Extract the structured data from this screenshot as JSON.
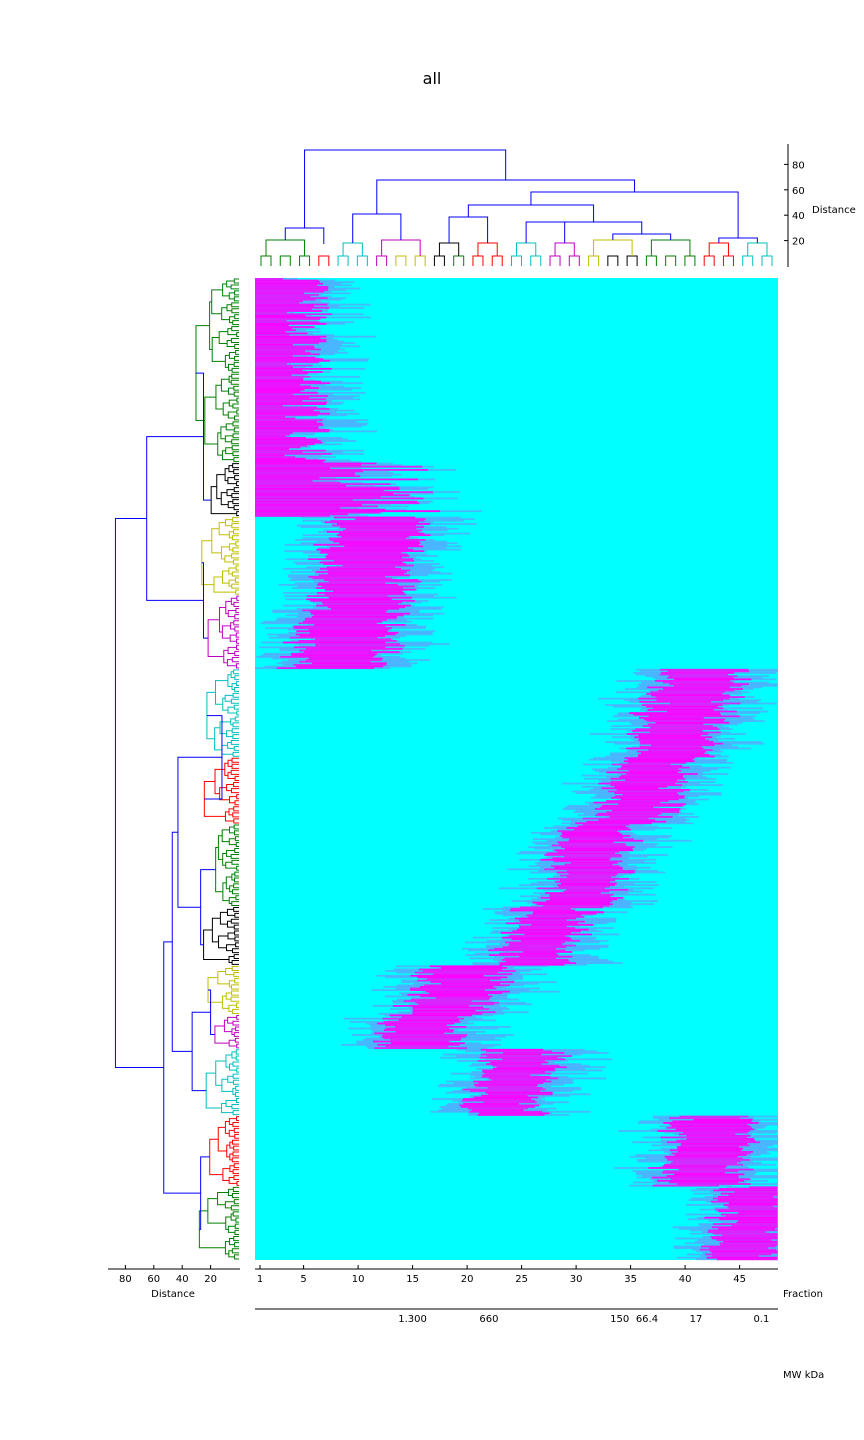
{
  "chart_data": {
    "type": "heatmap",
    "title": "all",
    "colormap": {
      "low": "#00ffff",
      "high": "#ff00ff",
      "mid": "#8080ff"
    },
    "x_axis": {
      "label": "Fraction",
      "range": [
        1,
        48
      ],
      "ticks": [
        1,
        5,
        10,
        15,
        20,
        25,
        30,
        35,
        40,
        45
      ]
    },
    "mw_axis": {
      "label": "MW kDa",
      "markers": [
        {
          "fraction": 15,
          "label": "1.300"
        },
        {
          "fraction": 22,
          "label": "660"
        },
        {
          "fraction": 34,
          "label": "150"
        },
        {
          "fraction": 36.5,
          "label": "66.4"
        },
        {
          "fraction": 41,
          "label": "17"
        },
        {
          "fraction": 47,
          "label": "0.1"
        }
      ]
    },
    "top_dendrogram": {
      "label": "Distance",
      "ticks": [
        20,
        40,
        60,
        80
      ],
      "range": [
        0,
        95
      ],
      "cluster_colors": [
        "#008000",
        "#008000",
        "#008000",
        "#ff0000",
        "#00bfbf",
        "#00bfbf",
        "#bf00bf",
        "#bfbf00",
        "#bfbf00",
        "#000000",
        "#008000",
        "#ff0000",
        "#ff0000",
        "#00bfbf",
        "#00bfbf",
        "#bf00bf",
        "#bf00bf",
        "#bfbf00",
        "#000000",
        "#000000",
        "#008000",
        "#008000",
        "#008000",
        "#ff0000",
        "#ff0000",
        "#00bfbf",
        "#00bfbf"
      ]
    },
    "left_dendrogram": {
      "label": "Distance",
      "ticks": [
        80,
        60,
        40,
        20
      ],
      "range": [
        0,
        92
      ],
      "link_color": "#0000ff"
    },
    "row_clusters": [
      {
        "color": "#008000",
        "row_start": 0.0,
        "row_end": 0.188,
        "profile": "early",
        "peak_fraction": 4,
        "width": 5
      },
      {
        "color": "#000000",
        "row_start": 0.188,
        "row_end": 0.243,
        "profile": "early",
        "peak_fraction": 6,
        "width": 10
      },
      {
        "color": "#bfbf00",
        "row_start": 0.243,
        "row_end": 0.323,
        "profile": "band",
        "peak_fraction": 11,
        "width": 5
      },
      {
        "color": "#bf00bf",
        "row_start": 0.323,
        "row_end": 0.398,
        "profile": "band",
        "peak_fraction": 9,
        "width": 5
      },
      {
        "color": "#00bfbf",
        "row_start": 0.398,
        "row_end": 0.488,
        "profile": "band",
        "peak_fraction": 40,
        "width": 4
      },
      {
        "color": "#ff0000",
        "row_start": 0.488,
        "row_end": 0.556,
        "profile": "band",
        "peak_fraction": 36,
        "width": 3
      },
      {
        "color": "#008000",
        "row_start": 0.556,
        "row_end": 0.64,
        "profile": "band",
        "peak_fraction": 31,
        "width": 3
      },
      {
        "color": "#000000",
        "row_start": 0.64,
        "row_end": 0.7,
        "profile": "band",
        "peak_fraction": 27,
        "width": 3
      },
      {
        "color": "#bfbf00",
        "row_start": 0.7,
        "row_end": 0.75,
        "profile": "band",
        "peak_fraction": 19,
        "width": 4
      },
      {
        "color": "#bf00bf",
        "row_start": 0.75,
        "row_end": 0.785,
        "profile": "band",
        "peak_fraction": 16,
        "width": 4
      },
      {
        "color": "#00bfbf",
        "row_start": 0.785,
        "row_end": 0.853,
        "profile": "band",
        "peak_fraction": 24,
        "width": 3
      },
      {
        "color": "#ff0000",
        "row_start": 0.853,
        "row_end": 0.925,
        "profile": "band",
        "peak_fraction": 42,
        "width": 4
      },
      {
        "color": "#008000",
        "row_start": 0.925,
        "row_end": 1.0,
        "profile": "band",
        "peak_fraction": 46,
        "width": 3
      }
    ]
  }
}
